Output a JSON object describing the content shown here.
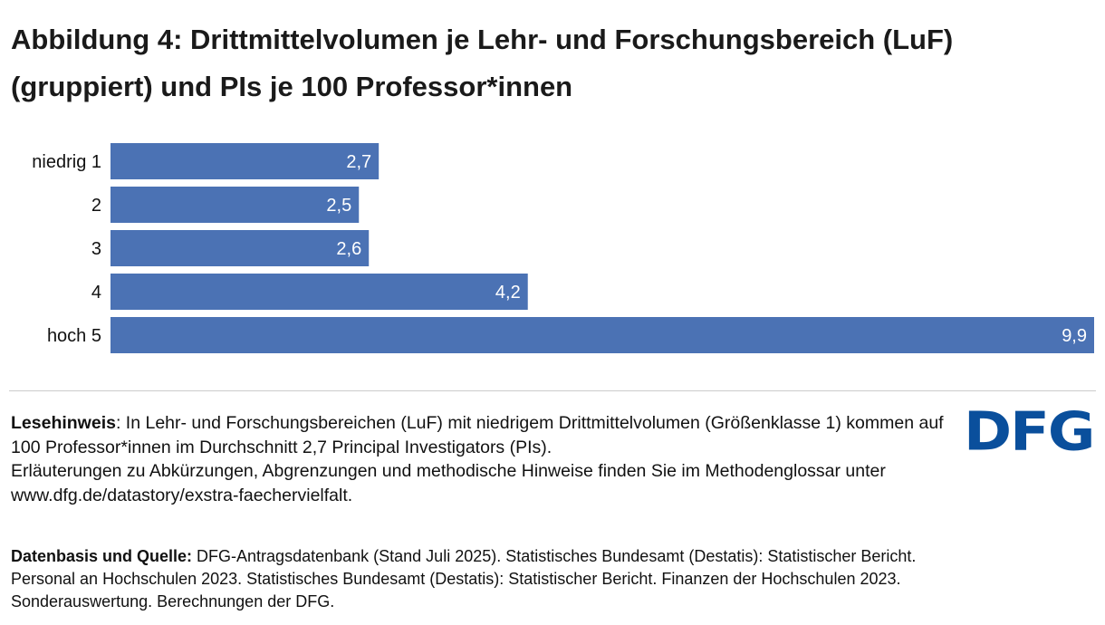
{
  "title": "Abbildung 4: Drittmittelvolumen je Lehr- und Forschungsbereich (LuF) (gruppiert) und PIs je 100 Professor*innen",
  "chart_data": {
    "type": "bar",
    "orientation": "horizontal",
    "categories": [
      "niedrig 1",
      "2",
      "3",
      "4",
      "hoch 5"
    ],
    "values": [
      2.7,
      2.5,
      2.6,
      4.2,
      9.9
    ],
    "data_labels": [
      "2,7",
      "2,5",
      "2,6",
      "4,2",
      "9,9"
    ],
    "xlim": [
      0,
      9.9
    ],
    "grid": false,
    "bar_color": "#4b72b4"
  },
  "note": {
    "label": "Lesehinweis",
    "text": ": In Lehr- und Forschungsbereichen (LuF) mit niedrigem Drittmittelvolumen (Größenklasse 1) kommen auf 100 Professor*innen im Durchschnitt 2,7 Principal Investigators (PIs).",
    "text2": "Erläuterungen zu Abkürzungen, Abgrenzungen und methodische Hinweise finden Sie im Methodenglossar unter www.dfg.de/datastory/exstra-faechervielfalt."
  },
  "source": {
    "label": "Datenbasis und Quelle:",
    "text": " DFG-Antragsdatenbank (Stand Juli 2025). Statistisches Bundesamt (Destatis): Statistischer Bericht. Personal an Hochschulen 2023. Statistisches Bundesamt (Destatis): Statistischer Bericht. Finanzen der Hochschulen 2023. Sonderauswertung. Berechnungen der DFG."
  },
  "logo": {
    "text": "DFG",
    "color": "#0a4f9c"
  }
}
